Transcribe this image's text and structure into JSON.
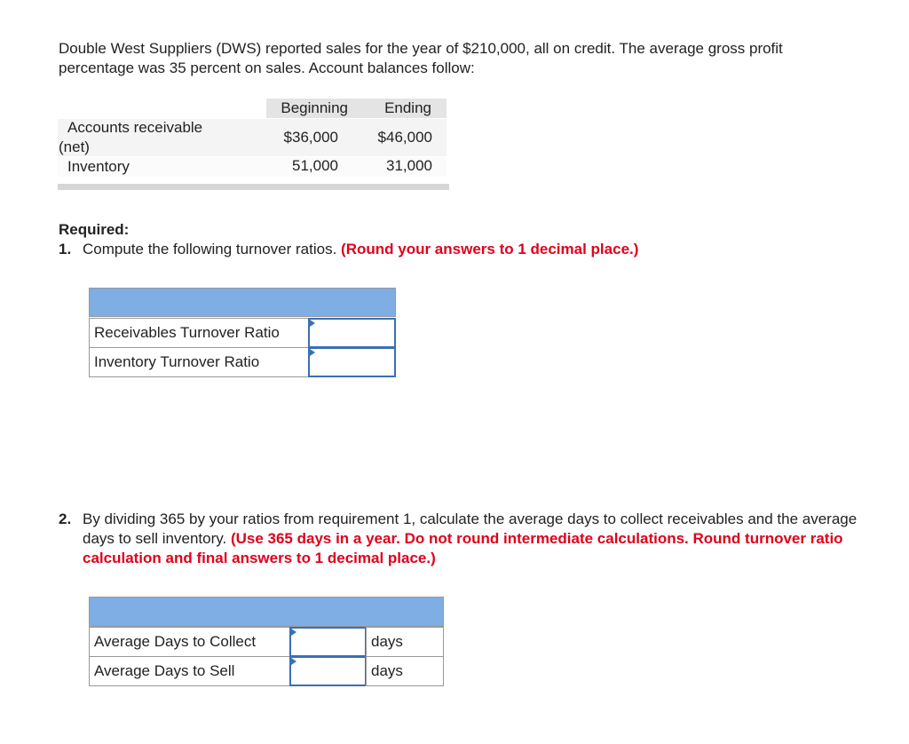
{
  "intro": "Double West Suppliers (DWS) reported sales for the year of $210,000, all on credit. The average gross profit percentage was 35 percent on sales. Account balances follow:",
  "balances": {
    "headers": [
      "Beginning",
      "Ending"
    ],
    "rows": [
      {
        "label": "Accounts receivable (net)",
        "beginning": "$36,000",
        "ending": "$46,000"
      },
      {
        "label": "Inventory",
        "beginning": "51,000",
        "ending": "31,000"
      }
    ]
  },
  "required": "Required:",
  "q1": {
    "number": "1.",
    "text": "Compute the following turnover ratios.",
    "note": "(Round your answers to 1 decimal place.)",
    "rows": [
      "Receivables Turnover Ratio",
      "Inventory Turnover Ratio"
    ]
  },
  "q2": {
    "number": "2.",
    "text": "By dividing 365 by your ratios from requirement 1, calculate the average days to collect receivables and the average days to sell inventory.",
    "note": "(Use 365 days in a year. Do not round intermediate calculations. Round turnover ratio calculation and final answers to 1 decimal place.)",
    "rows": [
      {
        "label": "Average Days to Collect",
        "unit": "days"
      },
      {
        "label": "Average Days to Sell",
        "unit": "days"
      }
    ]
  }
}
